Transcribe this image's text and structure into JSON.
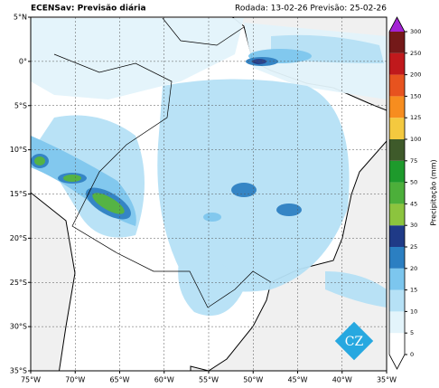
{
  "header": {
    "title": "ECENSav: Previsão diária",
    "run_info": "Rodada: 13-02-26 Previsão: 25-02-26"
  },
  "map": {
    "xlim": [
      -75,
      -35
    ],
    "ylim": [
      -35,
      5
    ],
    "xticks": [
      {
        "value": -75,
        "label": "75°W"
      },
      {
        "value": -70,
        "label": "70°W"
      },
      {
        "value": -65,
        "label": "65°W"
      },
      {
        "value": -60,
        "label": "60°W"
      },
      {
        "value": -55,
        "label": "55°W"
      },
      {
        "value": -50,
        "label": "50°W"
      },
      {
        "value": -45,
        "label": "45°W"
      },
      {
        "value": -40,
        "label": "40°W"
      },
      {
        "value": -35,
        "label": "35°W"
      }
    ],
    "yticks": [
      {
        "value": 5,
        "label": "5°N"
      },
      {
        "value": 0,
        "label": "0°"
      },
      {
        "value": -5,
        "label": "5°S"
      },
      {
        "value": -10,
        "label": "10°S"
      },
      {
        "value": -15,
        "label": "15°S"
      },
      {
        "value": -20,
        "label": "20°S"
      },
      {
        "value": -25,
        "label": "25°S"
      },
      {
        "value": -30,
        "label": "30°S"
      },
      {
        "value": -35,
        "label": "35°S"
      }
    ],
    "grid": true,
    "logo": "CZ"
  },
  "colorbar": {
    "label": "Precipitação (mm)",
    "ticks": [
      0,
      5,
      10,
      15,
      20,
      25,
      30,
      45,
      50,
      75,
      100,
      125,
      150,
      200,
      250,
      300
    ],
    "colors": [
      "#ffffff",
      "#e3f4fb",
      "#b6e1f6",
      "#7cc6ee",
      "#2b7fc2",
      "#1f3a87",
      "#8cc43e",
      "#4caf3a",
      "#1e9a2c",
      "#3e5a2a",
      "#f4c93f",
      "#f78d1f",
      "#e7531f",
      "#c0191c",
      "#741919"
    ],
    "over_color": "#a323d4"
  }
}
